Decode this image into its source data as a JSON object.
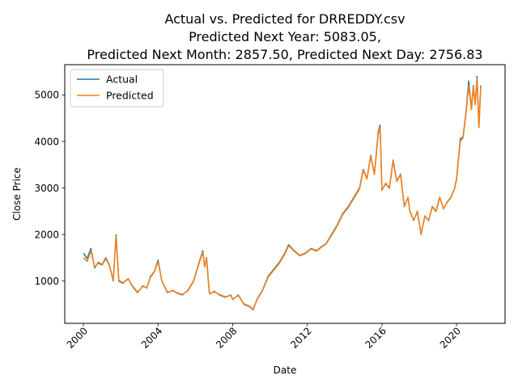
{
  "chart_data": {
    "type": "line",
    "title_lines": [
      "Actual vs. Predicted for DRREDDY.csv",
      "Predicted Next Year: 5083.05,",
      "Predicted Next Month: 2857.50, Predicted Next Day: 2756.83"
    ],
    "xlabel": "Date",
    "ylabel": "Close Price",
    "xlim": [
      1999.0,
      2022.6
    ],
    "ylim": [
      90,
      5650
    ],
    "x_ticks": [
      2000,
      2004,
      2008,
      2012,
      2016,
      2020
    ],
    "x_tick_labels": [
      "2000",
      "2004",
      "2008",
      "2012",
      "2016",
      "2020"
    ],
    "y_ticks": [
      1000,
      2000,
      3000,
      4000,
      5000
    ],
    "y_tick_labels": [
      "1000",
      "2000",
      "3000",
      "4000",
      "5000"
    ],
    "grid": false,
    "legend_position": "top-left",
    "series": [
      {
        "name": "Actual",
        "color": "#1f77b4",
        "x": [
          2000.0,
          2000.2,
          2000.4,
          2000.6,
          2000.8,
          2001.0,
          2001.2,
          2001.4,
          2001.6,
          2001.7,
          2001.75,
          2001.9,
          2002.1,
          2002.4,
          2002.6,
          2002.9,
          2003.2,
          2003.4,
          2003.6,
          2003.8,
          2004.0,
          2004.2,
          2004.5,
          2004.8,
          2005.0,
          2005.3,
          2005.6,
          2005.9,
          2006.2,
          2006.4,
          2006.5,
          2006.6,
          2006.75,
          2006.8,
          2007.0,
          2007.3,
          2007.6,
          2007.9,
          2008.0,
          2008.3,
          2008.6,
          2008.9,
          2009.1,
          2009.3,
          2009.6,
          2009.9,
          2010.2,
          2010.5,
          2010.8,
          2011.0,
          2011.3,
          2011.6,
          2011.9,
          2012.2,
          2012.5,
          2012.8,
          2013.0,
          2013.3,
          2013.6,
          2013.9,
          2014.2,
          2014.5,
          2014.8,
          2015.0,
          2015.2,
          2015.4,
          2015.6,
          2015.8,
          2015.9,
          2016.0,
          2016.2,
          2016.4,
          2016.6,
          2016.8,
          2017.0,
          2017.2,
          2017.4,
          2017.5,
          2017.7,
          2017.9,
          2018.1,
          2018.3,
          2018.5,
          2018.7,
          2018.9,
          2019.1,
          2019.3,
          2019.5,
          2019.7,
          2019.9,
          2020.0,
          2020.2,
          2020.35,
          2020.5,
          2020.65,
          2020.8,
          2020.9,
          2021.0,
          2021.1,
          2021.2,
          2021.3
        ],
        "y": [
          1600,
          1480,
          1700,
          1280,
          1400,
          1350,
          1500,
          1330,
          1000,
          1650,
          1990,
          1000,
          950,
          1050,
          900,
          750,
          900,
          850,
          1100,
          1200,
          1450,
          1000,
          750,
          800,
          740,
          700,
          800,
          1000,
          1400,
          1650,
          1300,
          1500,
          750,
          720,
          780,
          700,
          650,
          700,
          600,
          700,
          500,
          450,
          380,
          600,
          800,
          1100,
          1250,
          1400,
          1600,
          1780,
          1650,
          1550,
          1600,
          1700,
          1650,
          1750,
          1800,
          2000,
          2200,
          2450,
          2600,
          2800,
          3000,
          3400,
          3200,
          3700,
          3300,
          4200,
          4350,
          2950,
          3100,
          3000,
          3600,
          3150,
          3300,
          2600,
          2800,
          2500,
          2300,
          2500,
          2000,
          2400,
          2300,
          2600,
          2500,
          2800,
          2550,
          2700,
          2800,
          3000,
          3200,
          4050,
          4100,
          4600,
          5300,
          4700,
          5200,
          4800,
          5400,
          4300,
          5200
        ]
      },
      {
        "name": "Predicted",
        "color": "#ff7f0e",
        "x": [
          2000.0,
          2000.2,
          2000.4,
          2000.6,
          2000.8,
          2001.0,
          2001.2,
          2001.4,
          2001.6,
          2001.7,
          2001.75,
          2001.9,
          2002.1,
          2002.4,
          2002.6,
          2002.9,
          2003.2,
          2003.4,
          2003.6,
          2003.8,
          2004.0,
          2004.2,
          2004.5,
          2004.8,
          2005.0,
          2005.3,
          2005.6,
          2005.9,
          2006.2,
          2006.4,
          2006.5,
          2006.6,
          2006.75,
          2006.8,
          2007.0,
          2007.3,
          2007.6,
          2007.9,
          2008.0,
          2008.3,
          2008.6,
          2008.9,
          2009.1,
          2009.3,
          2009.6,
          2009.9,
          2010.2,
          2010.5,
          2010.8,
          2011.0,
          2011.3,
          2011.6,
          2011.9,
          2012.2,
          2012.5,
          2012.8,
          2013.0,
          2013.3,
          2013.6,
          2013.9,
          2014.2,
          2014.5,
          2014.8,
          2015.0,
          2015.2,
          2015.4,
          2015.6,
          2015.8,
          2015.9,
          2016.0,
          2016.2,
          2016.4,
          2016.6,
          2016.8,
          2017.0,
          2017.2,
          2017.4,
          2017.5,
          2017.7,
          2017.9,
          2018.1,
          2018.3,
          2018.5,
          2018.7,
          2018.9,
          2019.1,
          2019.3,
          2019.5,
          2019.7,
          2019.9,
          2020.0,
          2020.2,
          2020.35,
          2020.5,
          2020.65,
          2020.8,
          2020.9,
          2021.0,
          2021.1,
          2021.2,
          2021.3
        ],
        "y": [
          1500,
          1420,
          1650,
          1300,
          1380,
          1340,
          1480,
          1320,
          1020,
          1620,
          1950,
          1020,
          960,
          1040,
          910,
          760,
          890,
          860,
          1080,
          1190,
          1420,
          1010,
          760,
          790,
          750,
          710,
          790,
          990,
          1380,
          1620,
          1310,
          1480,
          760,
          730,
          770,
          710,
          660,
          690,
          610,
          690,
          510,
          460,
          390,
          590,
          790,
          1080,
          1230,
          1380,
          1580,
          1760,
          1640,
          1540,
          1590,
          1690,
          1640,
          1740,
          1790,
          1980,
          2180,
          2430,
          2580,
          2780,
          2980,
          3380,
          3190,
          3680,
          3290,
          4150,
          4300,
          2960,
          3090,
          2990,
          3580,
          3140,
          3290,
          2610,
          2790,
          2510,
          2310,
          2490,
          2010,
          2390,
          2310,
          2590,
          2490,
          2790,
          2560,
          2690,
          2790,
          2990,
          3180,
          4000,
          4080,
          4570,
          5200,
          4680,
          5170,
          4790,
          5350,
          4310,
          5180
        ]
      }
    ]
  }
}
